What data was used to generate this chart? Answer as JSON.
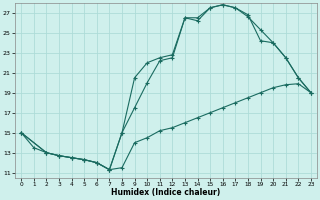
{
  "xlabel": "Humidex (Indice chaleur)",
  "background_color": "#cff0ec",
  "grid_color": "#aedcd8",
  "line_color": "#1a6b60",
  "xlim": [
    -0.5,
    23.5
  ],
  "ylim": [
    10.5,
    28.0
  ],
  "xticks": [
    0,
    1,
    2,
    3,
    4,
    5,
    6,
    7,
    8,
    9,
    10,
    11,
    12,
    13,
    14,
    15,
    16,
    17,
    18,
    19,
    20,
    21,
    22,
    23
  ],
  "yticks": [
    11,
    13,
    15,
    17,
    19,
    21,
    23,
    25,
    27
  ],
  "line1_x": [
    0,
    1,
    2,
    3,
    4,
    5,
    6,
    7,
    8,
    9,
    10,
    11,
    12,
    13,
    14,
    15,
    16,
    17,
    18,
    19,
    20,
    21,
    22,
    23
  ],
  "line1_y": [
    15.0,
    13.5,
    13.0,
    12.7,
    12.5,
    12.3,
    12.0,
    11.3,
    11.5,
    14.0,
    14.5,
    15.2,
    15.5,
    16.0,
    16.5,
    17.0,
    17.5,
    18.0,
    18.5,
    19.0,
    19.5,
    19.8,
    19.9,
    19.0
  ],
  "line2_x": [
    0,
    2,
    3,
    4,
    5,
    6,
    7,
    8,
    9,
    10,
    11,
    12,
    13,
    14,
    15,
    16,
    17,
    18,
    19,
    20,
    21,
    22,
    23
  ],
  "line2_y": [
    15.0,
    13.0,
    12.7,
    12.5,
    12.3,
    12.0,
    11.3,
    15.0,
    17.5,
    20.0,
    22.2,
    22.5,
    26.5,
    26.2,
    27.5,
    27.8,
    27.5,
    26.6,
    25.3,
    24.0,
    22.5,
    20.5,
    19.0
  ],
  "line3_x": [
    0,
    2,
    3,
    4,
    5,
    6,
    7,
    8,
    9,
    10,
    11,
    12,
    13,
    14,
    15,
    16,
    17,
    18,
    19,
    20,
    21,
    22,
    23
  ],
  "line3_y": [
    15.0,
    13.0,
    12.7,
    12.5,
    12.3,
    12.0,
    11.3,
    15.0,
    20.5,
    22.0,
    22.5,
    22.8,
    26.5,
    26.5,
    27.5,
    27.8,
    27.5,
    26.8,
    24.2,
    24.0,
    22.5,
    20.5,
    19.0
  ]
}
